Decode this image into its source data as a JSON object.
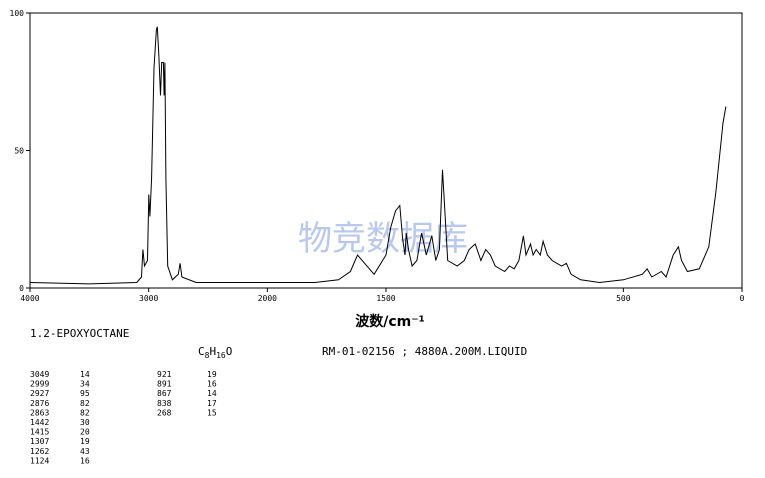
{
  "chart_data": {
    "type": "line",
    "compound": "1.2-EPOXYOCTANE",
    "formula": [
      "C",
      "8",
      "H",
      "16",
      "O"
    ],
    "sample_info": "RM-01-02156 ; 4880A.200M.LIQUID",
    "x_label": "波数/cm⁻¹",
    "watermark": "物竞数据库",
    "xlim": [
      4000,
      0
    ],
    "x_break": 2000,
    "x_break_ratio": 2,
    "xticks": [
      4000,
      3000,
      2000,
      1500,
      500,
      0
    ],
    "ylim": [
      0,
      100
    ],
    "yticks": [
      0,
      50,
      100
    ],
    "series": [
      {
        "color": "#000000",
        "x": [
          4000,
          3500,
          3100,
          3060,
          3049,
          3035,
          3010,
          2999,
          2990,
          2975,
          2955,
          2935,
          2927,
          2915,
          2900,
          2890,
          2876,
          2870,
          2863,
          2855,
          2840,
          2800,
          2750,
          2735,
          2720,
          2600,
          2400,
          2000,
          1800,
          1700,
          1650,
          1620,
          1550,
          1500,
          1480,
          1460,
          1442,
          1430,
          1420,
          1415,
          1405,
          1390,
          1370,
          1350,
          1330,
          1307,
          1290,
          1275,
          1262,
          1240,
          1200,
          1170,
          1150,
          1124,
          1100,
          1080,
          1060,
          1040,
          1000,
          980,
          960,
          940,
          921,
          910,
          891,
          880,
          867,
          850,
          838,
          820,
          800,
          760,
          740,
          720,
          680,
          600,
          500,
          420,
          400,
          380,
          340,
          320,
          290,
          268,
          255,
          230,
          180,
          140,
          110,
          80,
          68
        ],
        "values": [
          2,
          1.5,
          2,
          4,
          14,
          8,
          10,
          34,
          26,
          40,
          80,
          94,
          95,
          85,
          70,
          82,
          82,
          70,
          82,
          40,
          8,
          3,
          5,
          9,
          4,
          2,
          2,
          2,
          2,
          3,
          6,
          12,
          5,
          12,
          22,
          28,
          30,
          18,
          12,
          20,
          14,
          8,
          10,
          20,
          12,
          19,
          10,
          14,
          43,
          10,
          8,
          10,
          14,
          16,
          10,
          14,
          12,
          8,
          6,
          8,
          7,
          10,
          19,
          12,
          16,
          12,
          14,
          12,
          17,
          12,
          10,
          8,
          9,
          5,
          3,
          2,
          3,
          5,
          7,
          4,
          6,
          4,
          12,
          15,
          10,
          6,
          7,
          15,
          35,
          60,
          66
        ]
      }
    ],
    "peaks": [
      [
        [
          3049,
          14
        ],
        [
          2999,
          34
        ],
        [
          2927,
          95
        ],
        [
          2876,
          82
        ],
        [
          2863,
          82
        ],
        [
          1442,
          30
        ],
        [
          1415,
          20
        ],
        [
          1307,
          19
        ],
        [
          1262,
          43
        ],
        [
          1124,
          16
        ]
      ],
      [
        [
          921,
          19
        ],
        [
          891,
          16
        ],
        [
          867,
          14
        ],
        [
          838,
          17
        ],
        [
          268,
          15
        ]
      ]
    ]
  }
}
